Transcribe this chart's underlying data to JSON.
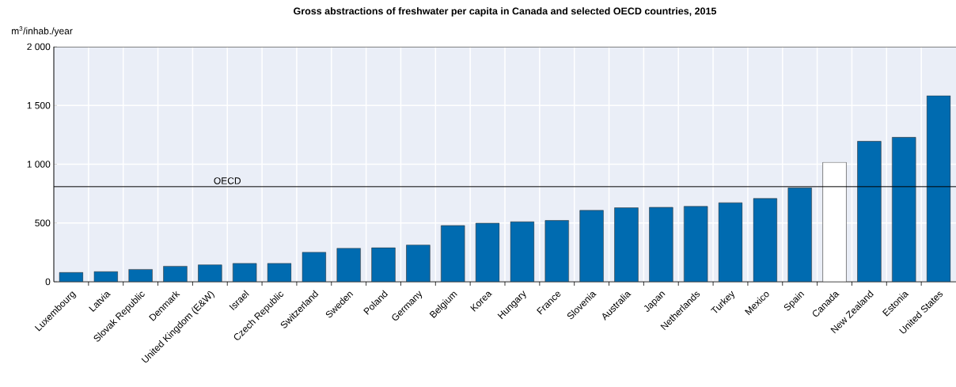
{
  "chart_data": {
    "type": "bar",
    "title": "Gross abstractions of freshwater per capita in Canada and selected OECD countries, 2015",
    "ylabel": "m$^{3}$/inhab./year",
    "categories": [
      "Luxembourg",
      "Latvia",
      "Slovak Republic",
      "Denmark",
      "United Kingdom (E&W)",
      "Israel",
      "Czech Republic",
      "Switzerland",
      "Sweden",
      "Poland",
      "Germany",
      "Belgium",
      "Korea",
      "Hungary",
      "France",
      "Slovenia",
      "Australia",
      "Japan",
      "Netherlands",
      "Turkey",
      "Mexico",
      "Spain",
      "Canada",
      "New Zealand",
      "Estonia",
      "United States"
    ],
    "values": [
      79,
      86,
      105,
      132,
      144,
      156,
      156,
      251,
      285,
      289,
      313,
      478,
      498,
      510,
      521,
      607,
      630,
      633,
      641,
      672,
      708,
      799,
      1016,
      1195,
      1229,
      1583
    ],
    "colors": [
      "#006bb0",
      "#006bb0",
      "#006bb0",
      "#006bb0",
      "#006bb0",
      "#006bb0",
      "#006bb0",
      "#006bb0",
      "#006bb0",
      "#006bb0",
      "#006bb0",
      "#006bb0",
      "#006bb0",
      "#006bb0",
      "#006bb0",
      "#006bb0",
      "#006bb0",
      "#006bb0",
      "#006bb0",
      "#006bb0",
      "#006bb0",
      "#006bb0",
      "#ffffff",
      "#006bb0",
      "#006bb0",
      "#006bb0"
    ],
    "ylim": [
      0,
      2000
    ],
    "yticks": [
      0,
      500,
      {
        "value": 1000,
        "label": "1 000"
      },
      {
        "value": 1500,
        "label": "1 500"
      },
      {
        "value": 2000,
        "label": "2 000"
      }
    ],
    "ref_lines": [
      {
        "axis": "y",
        "value": 809,
        "label": "OECD",
        "color": "#000000"
      }
    ],
    "grid": true
  }
}
